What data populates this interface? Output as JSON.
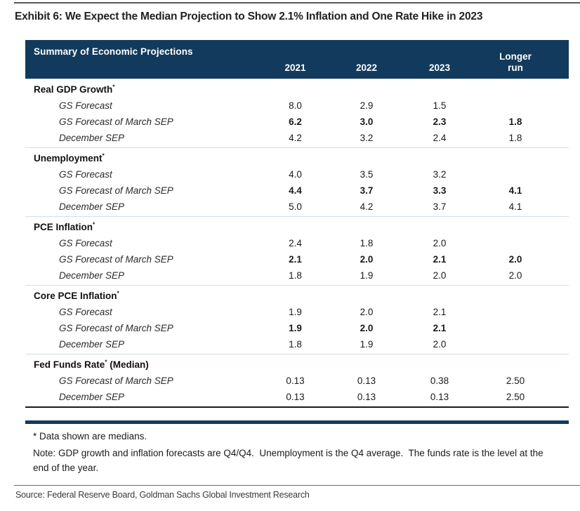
{
  "page": {
    "title": "Exhibit 6: We Expect the Median Projection to Show 2.1% Inflation and One Rate Hike in 2023",
    "source": "Source: Federal Reserve Board, Goldman Sachs Global Investment Research"
  },
  "colors": {
    "navy_header": "#123A5C",
    "section_separator": "#D3DEEA",
    "rule_gray": "#58595B"
  },
  "table": {
    "title": "Summary of Economic Projections",
    "columns": [
      "2021",
      "2022",
      "2023",
      "Longer run"
    ],
    "sections": [
      {
        "label": "Real GDP Growth",
        "sup": "*",
        "suffix": "",
        "rows": [
          {
            "label": "GS Forecast",
            "values": [
              "8.0",
              "2.9",
              "1.5",
              ""
            ]
          },
          {
            "label": "GS Forecast of March SEP",
            "values": [
              "6.2",
              "3.0",
              "2.3",
              "1.8"
            ]
          },
          {
            "label": "December SEP",
            "values": [
              "4.2",
              "3.2",
              "2.4",
              "1.8"
            ]
          }
        ]
      },
      {
        "label": "Unemployment",
        "sup": "*",
        "suffix": "",
        "rows": [
          {
            "label": "GS Forecast",
            "values": [
              "4.0",
              "3.5",
              "3.2",
              ""
            ]
          },
          {
            "label": "GS Forecast of March SEP",
            "values": [
              "4.4",
              "3.7",
              "3.3",
              "4.1"
            ]
          },
          {
            "label": "December SEP",
            "values": [
              "5.0",
              "4.2",
              "3.7",
              "4.1"
            ]
          }
        ]
      },
      {
        "label": "PCE Inflation",
        "sup": "*",
        "suffix": "",
        "rows": [
          {
            "label": "GS Forecast",
            "values": [
              "2.4",
              "1.8",
              "2.0",
              ""
            ]
          },
          {
            "label": "GS Forecast of March SEP",
            "values": [
              "2.1",
              "2.0",
              "2.1",
              "2.0"
            ]
          },
          {
            "label": "December SEP",
            "values": [
              "1.8",
              "1.9",
              "2.0",
              "2.0"
            ]
          }
        ]
      },
      {
        "label": "Core PCE Inflation",
        "sup": "*",
        "suffix": "",
        "rows": [
          {
            "label": "GS Forecast",
            "values": [
              "1.9",
              "2.0",
              "2.1",
              ""
            ]
          },
          {
            "label": "GS Forecast of March SEP",
            "values": [
              "1.9",
              "2.0",
              "2.1",
              ""
            ]
          },
          {
            "label": "December SEP",
            "values": [
              "1.8",
              "1.9",
              "2.0",
              ""
            ]
          }
        ]
      },
      {
        "label": "Fed Funds Rate",
        "sup": "*",
        "suffix": " (Median)",
        "rows": [
          {
            "label": "GS Forecast of March SEP",
            "values": [
              "0.13",
              "0.13",
              "0.38",
              "2.50"
            ]
          },
          {
            "label": "December SEP",
            "values": [
              "0.13",
              "0.13",
              "0.13",
              "2.50"
            ]
          }
        ]
      }
    ],
    "footnotes": [
      "* Data shown are medians.",
      "Note: GDP growth and inflation forecasts are Q4/Q4.  Unemployment is the Q4 average.  The funds rate is the level at the end of the year."
    ]
  },
  "chart_data": {
    "type": "table",
    "title": "Summary of Economic Projections",
    "columns": [
      "",
      "2021",
      "2022",
      "2023",
      "Longer run"
    ],
    "sections": [
      {
        "name": "Real GDP Growth*",
        "rows": [
          [
            "GS Forecast",
            8.0,
            2.9,
            1.5,
            null
          ],
          [
            "GS Forecast of March SEP",
            6.2,
            3.0,
            2.3,
            1.8
          ],
          [
            "December SEP",
            4.2,
            3.2,
            2.4,
            1.8
          ]
        ]
      },
      {
        "name": "Unemployment*",
        "rows": [
          [
            "GS Forecast",
            4.0,
            3.5,
            3.2,
            null
          ],
          [
            "GS Forecast of March SEP",
            4.4,
            3.7,
            3.3,
            4.1
          ],
          [
            "December SEP",
            5.0,
            4.2,
            3.7,
            4.1
          ]
        ]
      },
      {
        "name": "PCE Inflation*",
        "rows": [
          [
            "GS Forecast",
            2.4,
            1.8,
            2.0,
            null
          ],
          [
            "GS Forecast of March SEP",
            2.1,
            2.0,
            2.1,
            2.0
          ],
          [
            "December SEP",
            1.8,
            1.9,
            2.0,
            2.0
          ]
        ]
      },
      {
        "name": "Core PCE Inflation*",
        "rows": [
          [
            "GS Forecast",
            1.9,
            2.0,
            2.1,
            null
          ],
          [
            "GS Forecast of March SEP",
            1.9,
            2.0,
            2.1,
            null
          ],
          [
            "December SEP",
            1.8,
            1.9,
            2.0,
            null
          ]
        ]
      },
      {
        "name": "Fed Funds Rate* (Median)",
        "rows": [
          [
            "GS Forecast of March SEP",
            0.13,
            0.13,
            0.38,
            2.5
          ],
          [
            "December SEP",
            0.13,
            0.13,
            0.13,
            2.5
          ]
        ]
      }
    ],
    "emphasis_note": "GS Forecast of March SEP values are bold in the first four sections"
  }
}
